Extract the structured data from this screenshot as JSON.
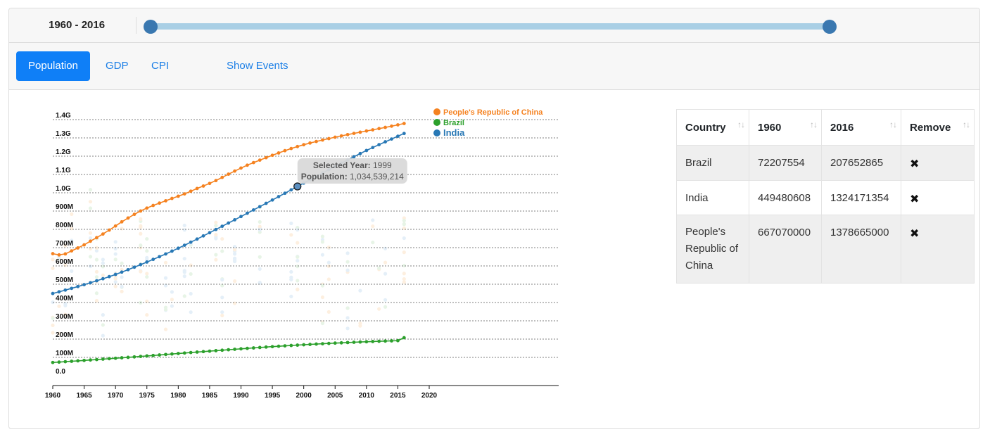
{
  "range": {
    "label": "1960 - 2016"
  },
  "tabs": [
    {
      "label": "Population",
      "active": true
    },
    {
      "label": "GDP",
      "active": false
    },
    {
      "label": "CPI",
      "active": false
    },
    {
      "label": "Show Events",
      "active": false
    }
  ],
  "chart_data": {
    "type": "line",
    "x_ticks": [
      "1960",
      "1965",
      "1970",
      "1975",
      "1980",
      "1985",
      "1990",
      "1995",
      "2000",
      "2005",
      "2010",
      "2015",
      "2020"
    ],
    "y_ticks": [
      "0.0",
      "100M",
      "200M",
      "300M",
      "400M",
      "500M",
      "600M",
      "700M",
      "800M",
      "900M",
      "1.0G",
      "1.1G",
      "1.2G",
      "1.3G",
      "1.4G"
    ],
    "xlim": [
      1960,
      2020
    ],
    "ylim": [
      0,
      1400000000
    ],
    "grid": true,
    "legend_position": "top-right",
    "series": [
      {
        "name": "People's Republic of China",
        "color": "#f58220",
        "x": [
          1960,
          1961,
          1962,
          1963,
          1964,
          1965,
          1966,
          1967,
          1968,
          1969,
          1970,
          1971,
          1972,
          1973,
          1974,
          1975,
          1976,
          1977,
          1978,
          1979,
          1980,
          1981,
          1982,
          1983,
          1984,
          1985,
          1986,
          1987,
          1988,
          1989,
          1990,
          1991,
          1992,
          1993,
          1994,
          1995,
          1996,
          1997,
          1998,
          1999,
          2000,
          2001,
          2002,
          2003,
          2004,
          2005,
          2006,
          2007,
          2008,
          2009,
          2010,
          2011,
          2012,
          2013,
          2014,
          2015,
          2016
        ],
        "y": [
          667070000,
          660330000,
          665770000,
          682335000,
          698355000,
          715185000,
          735400000,
          754550000,
          774510000,
          796025000,
          818315000,
          841105000,
          862030000,
          881940000,
          900350000,
          916395000,
          930685000,
          943455000,
          956165000,
          969005000,
          981235000,
          993885000,
          1008630000,
          1023310000,
          1036825000,
          1051040000,
          1066790000,
          1084035000,
          1101630000,
          1118650000,
          1135185000,
          1150780000,
          1164970000,
          1178440000,
          1191835000,
          1204855000,
          1217550000,
          1230075000,
          1241935000,
          1252735000,
          1262645000,
          1271850000,
          1280400000,
          1288400000,
          1296075000,
          1303720000,
          1311020000,
          1317885000,
          1324655000,
          1331260000,
          1337705000,
          1344130000,
          1350695000,
          1357380000,
          1364270000,
          1371220000,
          1378665000
        ]
      },
      {
        "name": "Brazil",
        "color": "#2ca02c",
        "x": [
          1960,
          1961,
          1962,
          1963,
          1964,
          1965,
          1966,
          1967,
          1968,
          1969,
          1970,
          1971,
          1972,
          1973,
          1974,
          1975,
          1976,
          1977,
          1978,
          1979,
          1980,
          1981,
          1982,
          1983,
          1984,
          1985,
          1986,
          1987,
          1988,
          1989,
          1990,
          1991,
          1992,
          1993,
          1994,
          1995,
          1996,
          1997,
          1998,
          1999,
          2000,
          2001,
          2002,
          2003,
          2004,
          2005,
          2006,
          2007,
          2008,
          2009,
          2010,
          2011,
          2012,
          2013,
          2014,
          2015,
          2016
        ],
        "y": [
          72207554,
          74351763,
          76573248,
          78854019,
          81168654,
          83498020,
          85837457,
          88190182,
          90560375,
          92956006,
          95326793,
          97799285,
          100234000,
          102740000,
          105290000,
          107882000,
          110525000,
          113215000,
          115935000,
          118630000,
          121296000,
          123921000,
          126510000,
          129069000,
          131612000,
          134158000,
          136723000,
          139286000,
          141834000,
          144360000,
          146855000,
          149322000,
          151755000,
          154144000,
          156479000,
          158747000,
          160946000,
          163078000,
          165139000,
          167138000,
          169086000,
          170986000,
          172830000,
          174619000,
          176354000,
          178031000,
          179652000,
          181214000,
          182713000,
          184145000,
          185508000,
          186805000,
          188040000,
          189226000,
          190377000,
          191497000,
          207652865
        ]
      },
      {
        "name": "India",
        "color": "#2878b5",
        "x": [
          1960,
          1961,
          1962,
          1963,
          1964,
          1965,
          1966,
          1967,
          1968,
          1969,
          1970,
          1971,
          1972,
          1973,
          1974,
          1975,
          1976,
          1977,
          1978,
          1979,
          1980,
          1981,
          1982,
          1983,
          1984,
          1985,
          1986,
          1987,
          1988,
          1989,
          1990,
          1991,
          1992,
          1993,
          1994,
          1995,
          1996,
          1997,
          1998,
          1999,
          2000,
          2001,
          2002,
          2003,
          2004,
          2005,
          2006,
          2007,
          2008,
          2009,
          2010,
          2011,
          2012,
          2013,
          2014,
          2015,
          2016
        ],
        "y": [
          449480608,
          458494963,
          467852537,
          477527970,
          487484535,
          497702365,
          508161935,
          518889779,
          529967317,
          541505076,
          553578513,
          566224812,
          579411513,
          593058926,
          607050255,
          621301720,
          635771734,
          650485030,
          665502284,
          680915804,
          696783517,
          713118032,
          729868013,
          746949067,
          764245202,
          781666671,
          799181436,
          816792741,
          834489322,
          852270034,
          870133480,
          888054875,
          906021106,
          924057817,
          942204249,
          960482795,
          978893217,
          997405318,
          1015974042,
          1034539214,
          1053050912,
          1071477855,
          1089807112,
          1108027848,
          1126135777,
          1144118674,
          1161977719,
          1179681239,
          1197146906,
          1214270132,
          1230980691,
          1247236029,
          1263065852,
          1278562207,
          1293859294,
          1309053980,
          1324171354
        ]
      }
    ],
    "tooltip": {
      "year_label": "Selected Year",
      "year": "1999",
      "pop_label": "Population",
      "pop": "1,034,539,214"
    }
  },
  "table": {
    "headers": [
      "Country",
      "1960",
      "2016",
      "Remove"
    ],
    "sort_glyph": "↑↓",
    "rows": [
      {
        "country": "Brazil",
        "v1960": "72207554",
        "v2016": "207652865",
        "remove": "✖"
      },
      {
        "country": "India",
        "v1960": "449480608",
        "v2016": "1324171354",
        "remove": "✖"
      },
      {
        "country": "People's Republic of China",
        "v1960": "667070000",
        "v2016": "1378665000",
        "remove": "✖"
      }
    ]
  }
}
